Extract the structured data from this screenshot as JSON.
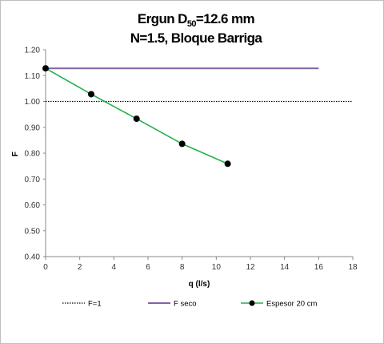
{
  "chart_data": {
    "type": "line",
    "title_line1_main": "Ergun D",
    "title_line1_sub": "50",
    "title_line1_rest": "=12.6 mm",
    "title_line2": "N=1.5, Bloque Barriga",
    "xlabel": "q (l/s)",
    "ylabel": "F",
    "xlim": [
      0,
      18
    ],
    "ylim": [
      0.4,
      1.2
    ],
    "xticks": [
      "0",
      "2",
      "4",
      "6",
      "8",
      "10",
      "12",
      "14",
      "16",
      "18"
    ],
    "yticks": [
      "0.40",
      "0.50",
      "0.60",
      "0.70",
      "0.80",
      "0.90",
      "1.00",
      "1.10",
      "1.20"
    ],
    "grid": false,
    "legend_position": "bottom",
    "series": [
      {
        "name": "F=1",
        "style": "dotted",
        "color": "#000000",
        "x": [
          0,
          18
        ],
        "y": [
          1.0,
          1.0
        ]
      },
      {
        "name": "F seco",
        "style": "solid",
        "color": "#8064a2",
        "x": [
          0,
          16
        ],
        "y": [
          1.128,
          1.128
        ]
      },
      {
        "name": "Espesor 20 cm",
        "style": "solid-markers",
        "color": "#22b14c",
        "marker_color": "#000000",
        "x": [
          0,
          2.67,
          5.33,
          8.0,
          10.67
        ],
        "y": [
          1.128,
          1.028,
          0.933,
          0.836,
          0.759
        ]
      }
    ]
  }
}
